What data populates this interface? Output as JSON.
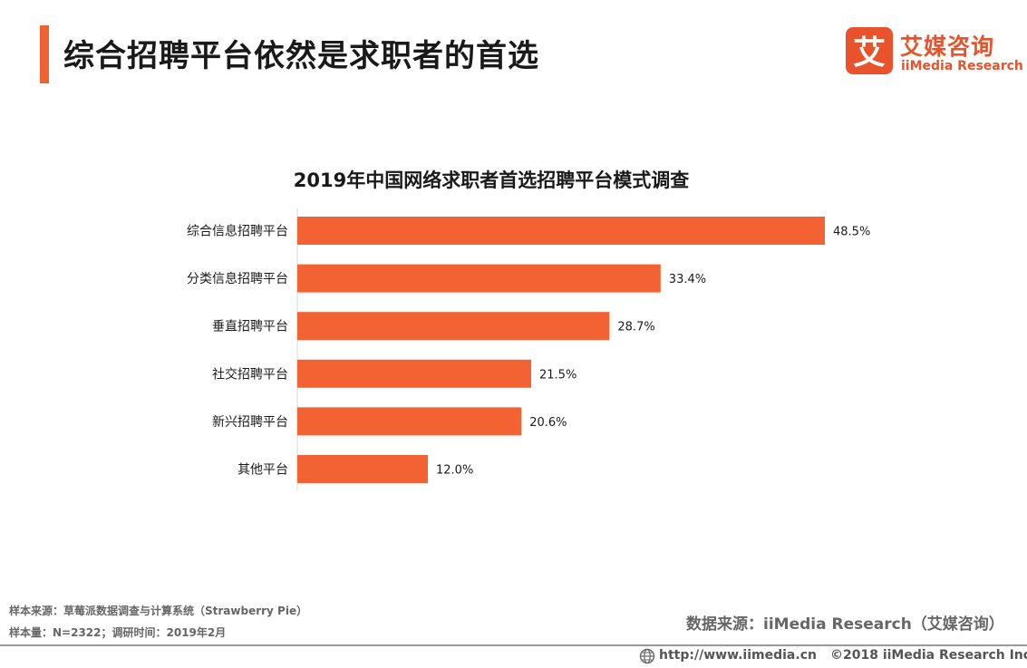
{
  "header": {
    "title": "综合招聘平台依然是求职者的首选"
  },
  "logo": {
    "mark": "艾",
    "name_cn": "艾媒咨询",
    "name_en": "iiMedia Research"
  },
  "colors": {
    "accent": "#f06233",
    "bar": "#f26233",
    "logo": "#e8532b"
  },
  "chart_data": {
    "type": "bar",
    "orientation": "horizontal",
    "title": "2019年中国网络求职者首选招聘平台模式调查",
    "categories": [
      "综合信息招聘平台",
      "分类信息招聘平台",
      "垂直招聘平台",
      "社交招聘平台",
      "新兴招聘平台",
      "其他平台"
    ],
    "values": [
      48.5,
      33.4,
      28.7,
      21.5,
      20.6,
      12.0
    ],
    "value_labels": [
      "48.5%",
      "33.4%",
      "28.7%",
      "21.5%",
      "20.6%",
      "12.0%"
    ],
    "unit": "%",
    "xlim": [
      0,
      58
    ],
    "grid": false,
    "legend": "none"
  },
  "footer": {
    "sample_source": "样本来源：草莓派数据调查与计算系统（Strawberry Pie）",
    "sample_info": "样本量：N=2322；调研时间：2019年2月",
    "data_source": "数据来源：iiMedia Research（艾媒咨询）",
    "url": "http://www.iimedia.cn",
    "copyright": "©2018  iiMedia Research  Inc"
  }
}
